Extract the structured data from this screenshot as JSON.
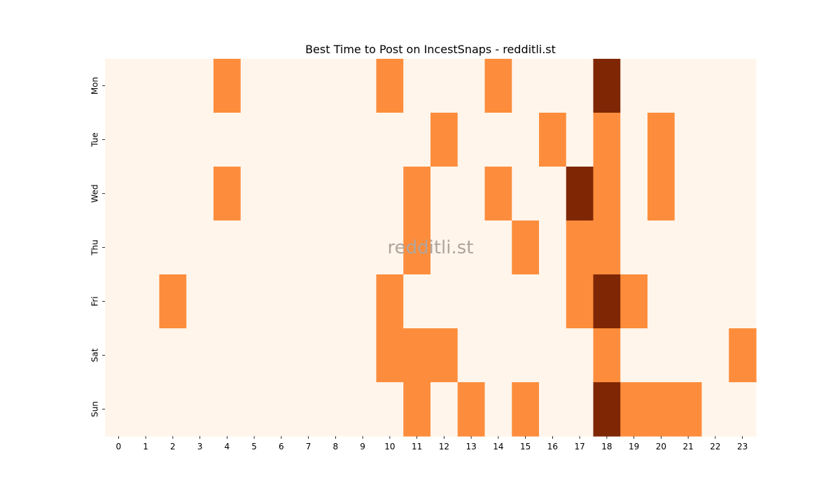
{
  "chart_data": {
    "type": "heatmap",
    "title": "Best Time to Post on IncestSnaps - redditli.st",
    "watermark": "redditli.st",
    "xlabel": "",
    "ylabel": "",
    "x_categories": [
      "0",
      "1",
      "2",
      "3",
      "4",
      "5",
      "6",
      "7",
      "8",
      "9",
      "10",
      "11",
      "12",
      "13",
      "14",
      "15",
      "16",
      "17",
      "18",
      "19",
      "20",
      "21",
      "22",
      "23"
    ],
    "y_categories": [
      "Mon",
      "Tue",
      "Wed",
      "Thu",
      "Fri",
      "Sat",
      "Sun"
    ],
    "levels": [
      0,
      1,
      2
    ],
    "colors": {
      "0": "#fff5eb",
      "1": "#fd8d3c",
      "2": "#7f2704"
    },
    "values": [
      [
        0,
        0,
        0,
        0,
        1,
        0,
        0,
        0,
        0,
        0,
        1,
        0,
        0,
        0,
        1,
        0,
        0,
        0,
        2,
        0,
        0,
        0,
        0,
        0
      ],
      [
        0,
        0,
        0,
        0,
        0,
        0,
        0,
        0,
        0,
        0,
        0,
        0,
        1,
        0,
        0,
        0,
        1,
        0,
        1,
        0,
        1,
        0,
        0,
        0
      ],
      [
        0,
        0,
        0,
        0,
        1,
        0,
        0,
        0,
        0,
        0,
        0,
        1,
        0,
        0,
        1,
        0,
        0,
        2,
        1,
        0,
        1,
        0,
        0,
        0
      ],
      [
        0,
        0,
        0,
        0,
        0,
        0,
        0,
        0,
        0,
        0,
        0,
        1,
        0,
        0,
        0,
        1,
        0,
        1,
        1,
        0,
        0,
        0,
        0,
        0
      ],
      [
        0,
        0,
        1,
        0,
        0,
        0,
        0,
        0,
        0,
        0,
        1,
        0,
        0,
        0,
        0,
        0,
        0,
        1,
        2,
        1,
        0,
        0,
        0,
        0
      ],
      [
        0,
        0,
        0,
        0,
        0,
        0,
        0,
        0,
        0,
        0,
        1,
        1,
        1,
        0,
        0,
        0,
        0,
        0,
        1,
        0,
        0,
        0,
        0,
        1
      ],
      [
        0,
        0,
        0,
        0,
        0,
        0,
        0,
        0,
        0,
        0,
        0,
        1,
        0,
        1,
        0,
        1,
        0,
        0,
        2,
        1,
        1,
        1,
        0,
        0
      ]
    ]
  }
}
